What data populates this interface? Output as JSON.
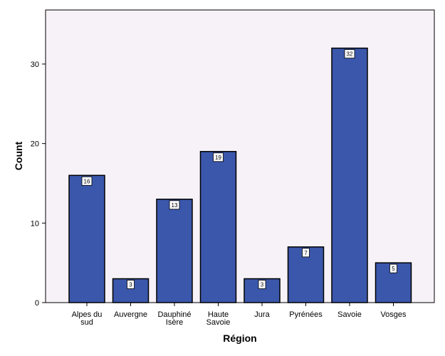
{
  "chart_data": {
    "type": "bar",
    "categories": [
      [
        "Alpes du",
        "sud"
      ],
      [
        "Auvergne"
      ],
      [
        "Dauphiné",
        "Isère"
      ],
      [
        "Haute",
        "Savoie"
      ],
      [
        "Jura"
      ],
      [
        "Pyrénées"
      ],
      [
        "Savoie"
      ],
      [
        "Vosges"
      ]
    ],
    "values": [
      16,
      3,
      13,
      19,
      3,
      7,
      32,
      5
    ],
    "data_labels": [
      "16",
      "3",
      "13",
      "19",
      "3",
      "7",
      "32",
      "5"
    ],
    "xlabel": "Région",
    "ylabel": "Count",
    "ylim": [
      0,
      36.8
    ],
    "yticks": [
      0,
      10,
      20,
      30
    ],
    "grid": false,
    "colors": {
      "bar_fill": "#3a57ab",
      "bar_stroke": "#000000",
      "plot_bg": "#f7f2f7",
      "label_box": "#ffffff"
    }
  }
}
